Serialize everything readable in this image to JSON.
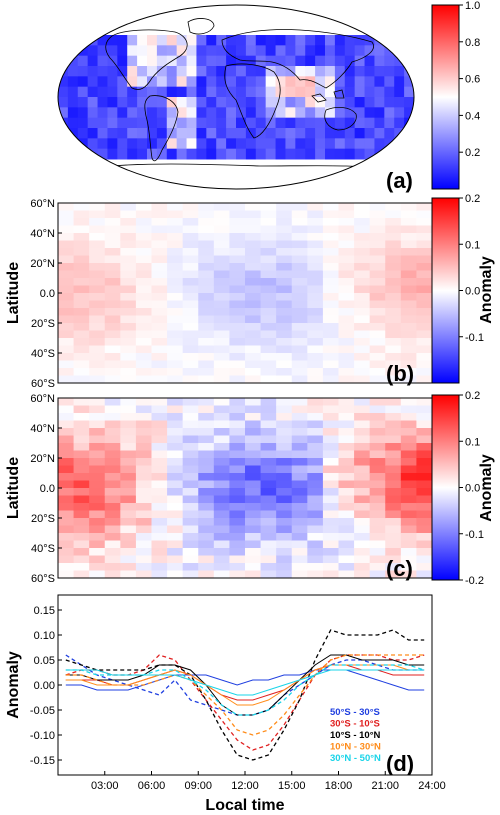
{
  "colors": {
    "colormap": [
      "#0000ff",
      "#ffffff",
      "#ff0000"
    ],
    "ocean": "#2a3fd6",
    "frame": "#000000",
    "series": [
      "#1f3fe0",
      "#e02020",
      "#000000",
      "#ff8c1a",
      "#19d4e8"
    ]
  },
  "panels": {
    "a": {
      "label": "(a)"
    },
    "b": {
      "label": "(b)"
    },
    "c": {
      "label": "(c)"
    },
    "d": {
      "label": "(d)"
    }
  },
  "axes": {
    "latitude_title": "Latitude",
    "anomaly_title": "Anomaly",
    "local_time_title": "Local time"
  },
  "chart_data": [
    {
      "id": "a",
      "type": "heatmap",
      "description_visible": "global map, Robinson projection",
      "colorbar": {
        "range": [
          0.0,
          1.0
        ],
        "ticks": [
          "0.2",
          "0.4",
          "0.6",
          "0.8",
          "1.0"
        ],
        "tick_values": [
          0.2,
          0.4,
          0.6,
          0.8,
          1.0
        ]
      }
    },
    {
      "id": "b",
      "type": "heatmap",
      "x_range_hours": [
        0,
        24
      ],
      "y_range_deg": [
        -60,
        60
      ],
      "y_ticks": [
        "60°N",
        "40°N",
        "20°N",
        "0.0",
        "20°S",
        "40°S",
        "60°S"
      ],
      "y_tick_values": [
        60,
        40,
        20,
        0,
        -20,
        -40,
        -60
      ],
      "ylabel": "Latitude",
      "colorbar": {
        "label": "Anomaly",
        "range": [
          -0.2,
          0.2
        ],
        "ticks": [
          "0.2",
          "0.1",
          "0.0",
          "-0.1"
        ],
        "tick_values": [
          0.2,
          0.1,
          0.0,
          -0.1
        ]
      }
    },
    {
      "id": "c",
      "type": "heatmap",
      "x_range_hours": [
        0,
        24
      ],
      "y_range_deg": [
        -60,
        60
      ],
      "y_ticks": [
        "60°N",
        "40°N",
        "20°N",
        "0.0",
        "20°S",
        "40°S",
        "60°S"
      ],
      "y_tick_values": [
        60,
        40,
        20,
        0,
        -20,
        -40,
        -60
      ],
      "ylabel": "Latitude",
      "colorbar": {
        "label": "Anomaly",
        "range": [
          -0.2,
          0.2
        ],
        "ticks": [
          "0.2",
          "0.1",
          "0.0",
          "-0.1",
          "-0.2"
        ],
        "tick_values": [
          0.2,
          0.1,
          0.0,
          -0.1,
          -0.2
        ]
      }
    },
    {
      "id": "d",
      "type": "line",
      "xlabel": "Local time",
      "ylabel": "Anomaly",
      "xlim": [
        0,
        24
      ],
      "ylim": [
        -0.18,
        0.18
      ],
      "x_ticks": [
        "03:00",
        "06:00",
        "09:00",
        "12:00",
        "15:00",
        "18:00",
        "21:00",
        "24:00"
      ],
      "x_tick_values": [
        3,
        6,
        9,
        12,
        15,
        18,
        21,
        24
      ],
      "y_ticks": [
        "0.15",
        "0.10",
        "0.05",
        "0.00",
        "-0.05",
        "-0.10",
        "-0.15"
      ],
      "y_tick_values": [
        0.15,
        0.1,
        0.05,
        0.0,
        -0.05,
        -0.1,
        -0.15
      ],
      "x": [
        0.5,
        1.5,
        2.5,
        3.5,
        4.5,
        5.5,
        6.5,
        7.5,
        8.5,
        9.5,
        10.5,
        11.5,
        12.5,
        13.5,
        14.5,
        15.5,
        16.5,
        17.5,
        18.5,
        19.5,
        20.5,
        21.5,
        22.5,
        23.5
      ],
      "series": [
        {
          "name": "50°S - 30°S",
          "color": "#1f3fe0",
          "style": "dashed",
          "values": [
            0.06,
            0.04,
            0.02,
            0.01,
            0.0,
            -0.01,
            -0.02,
            0.01,
            -0.03,
            -0.04,
            -0.05,
            -0.06,
            -0.06,
            -0.05,
            -0.02,
            0.0,
            0.02,
            0.04,
            0.05,
            0.05,
            0.04,
            0.03,
            0.03,
            0.03
          ]
        },
        {
          "name": "50°S - 30°S",
          "color": "#1f3fe0",
          "style": "solid",
          "values": [
            0.0,
            0.0,
            -0.01,
            -0.01,
            -0.01,
            0.0,
            0.01,
            0.02,
            0.02,
            0.02,
            0.01,
            0.0,
            0.01,
            0.01,
            0.02,
            0.02,
            0.03,
            0.03,
            0.03,
            0.02,
            0.01,
            0.0,
            -0.01,
            -0.01
          ]
        },
        {
          "name": "30°S - 10°S",
          "color": "#e02020",
          "style": "dashed",
          "values": [
            0.02,
            0.03,
            0.03,
            0.02,
            0.02,
            0.03,
            0.06,
            0.05,
            0.01,
            -0.03,
            -0.07,
            -0.11,
            -0.13,
            -0.12,
            -0.08,
            -0.03,
            0.02,
            0.05,
            0.06,
            0.06,
            0.06,
            0.05,
            0.05,
            0.06
          ]
        },
        {
          "name": "30°S - 10°S",
          "color": "#e02020",
          "style": "solid",
          "values": [
            0.01,
            0.01,
            0.01,
            0.0,
            0.0,
            0.01,
            0.02,
            0.03,
            0.02,
            0.0,
            -0.02,
            -0.03,
            -0.03,
            -0.02,
            -0.01,
            0.01,
            0.03,
            0.04,
            0.04,
            0.03,
            0.03,
            0.02,
            0.02,
            0.02
          ]
        },
        {
          "name": "10°S - 10°N",
          "color": "#000000",
          "style": "dashed",
          "values": [
            0.05,
            0.04,
            0.03,
            0.03,
            0.03,
            0.03,
            0.04,
            0.04,
            0.02,
            -0.03,
            -0.09,
            -0.14,
            -0.15,
            -0.14,
            -0.09,
            -0.03,
            0.05,
            0.11,
            0.1,
            0.1,
            0.1,
            0.11,
            0.09,
            0.09
          ]
        },
        {
          "name": "10°S - 10°N",
          "color": "#000000",
          "style": "solid",
          "values": [
            0.02,
            0.02,
            0.01,
            0.01,
            0.01,
            0.02,
            0.04,
            0.04,
            0.03,
            0.0,
            -0.04,
            -0.06,
            -0.06,
            -0.05,
            -0.02,
            0.01,
            0.04,
            0.06,
            0.06,
            0.05,
            0.05,
            0.05,
            0.04,
            0.04
          ]
        },
        {
          "name": "10°N - 30°N",
          "color": "#ff8c1a",
          "style": "dashed",
          "values": [
            0.02,
            0.02,
            0.01,
            0.0,
            0.0,
            0.0,
            0.01,
            0.02,
            0.01,
            -0.02,
            -0.05,
            -0.09,
            -0.1,
            -0.09,
            -0.06,
            -0.02,
            0.02,
            0.05,
            0.06,
            0.06,
            0.06,
            0.06,
            0.06,
            0.06
          ]
        },
        {
          "name": "10°N - 30°N",
          "color": "#ff8c1a",
          "style": "solid",
          "values": [
            0.01,
            0.01,
            0.0,
            0.0,
            0.0,
            0.01,
            0.02,
            0.03,
            0.02,
            0.0,
            -0.02,
            -0.04,
            -0.04,
            -0.03,
            -0.01,
            0.01,
            0.03,
            0.04,
            0.04,
            0.04,
            0.04,
            0.04,
            0.03,
            0.03
          ]
        },
        {
          "name": "30°N - 50°N",
          "color": "#19d4e8",
          "style": "dashed",
          "values": [
            0.03,
            0.03,
            0.02,
            0.02,
            0.02,
            0.02,
            0.03,
            0.03,
            0.01,
            -0.01,
            -0.04,
            -0.06,
            -0.06,
            -0.05,
            -0.03,
            0.0,
            0.02,
            0.04,
            0.04,
            0.04,
            0.04,
            0.04,
            0.04,
            0.03
          ]
        },
        {
          "name": "30°N - 50°N",
          "color": "#19d4e8",
          "style": "solid",
          "values": [
            0.03,
            0.03,
            0.03,
            0.02,
            0.02,
            0.02,
            0.02,
            0.02,
            0.01,
            0.0,
            -0.01,
            -0.02,
            -0.02,
            -0.01,
            0.0,
            0.01,
            0.02,
            0.03,
            0.03,
            0.03,
            0.03,
            0.03,
            0.03,
            0.03
          ]
        }
      ],
      "legend": {
        "position": "lower-right",
        "entries": [
          {
            "text": "50°S - 30°S",
            "color": "#1f3fe0"
          },
          {
            "text": "30°S - 10°S",
            "color": "#e02020"
          },
          {
            "text": "10°S - 10°N",
            "color": "#000000"
          },
          {
            "text": "10°N - 30°N",
            "color": "#ff8c1a"
          },
          {
            "text": "30°N - 50°N",
            "color": "#19d4e8"
          }
        ]
      }
    }
  ]
}
